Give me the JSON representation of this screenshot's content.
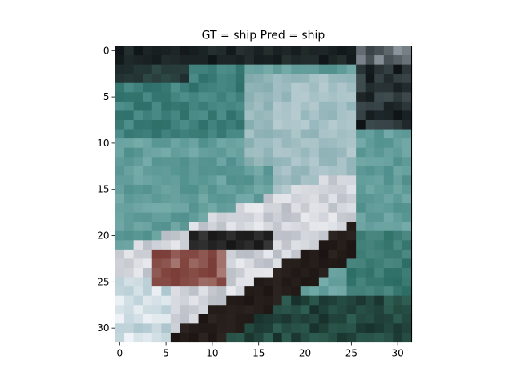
{
  "chart_data": {
    "type": "heatmap",
    "title": "GT = ship Pred = ship",
    "xlabel": "",
    "ylabel": "",
    "image_size": [
      32,
      32
    ],
    "xlim": [
      -0.5,
      31.5
    ],
    "ylim": [
      31.5,
      -0.5
    ],
    "x_ticks": [
      0,
      5,
      10,
      15,
      20,
      25,
      30
    ],
    "y_ticks": [
      0,
      5,
      10,
      15,
      20,
      25,
      30
    ],
    "x_tick_labels": [
      "0",
      "5",
      "10",
      "15",
      "20",
      "25",
      "30"
    ],
    "y_tick_labels": [
      "0",
      "5",
      "10",
      "15",
      "20",
      "25",
      "30"
    ],
    "grid": false,
    "image_content": "low-resolution photo of a white boat on teal water",
    "palette": {
      "water": "#4f8f8c",
      "water_dark": "#2f6f6a",
      "water_light": "#7fb2b1",
      "boat_white": "#e8eaee",
      "boat_gray": "#b8bcc4",
      "hull_dark": "#1b1412",
      "deck_red": "#7a3b35",
      "dock_dark": "#0f1518",
      "sail_blue": "#a9c4cc"
    }
  },
  "figure": {
    "background": "#ffffff",
    "axis_color": "#000000"
  }
}
